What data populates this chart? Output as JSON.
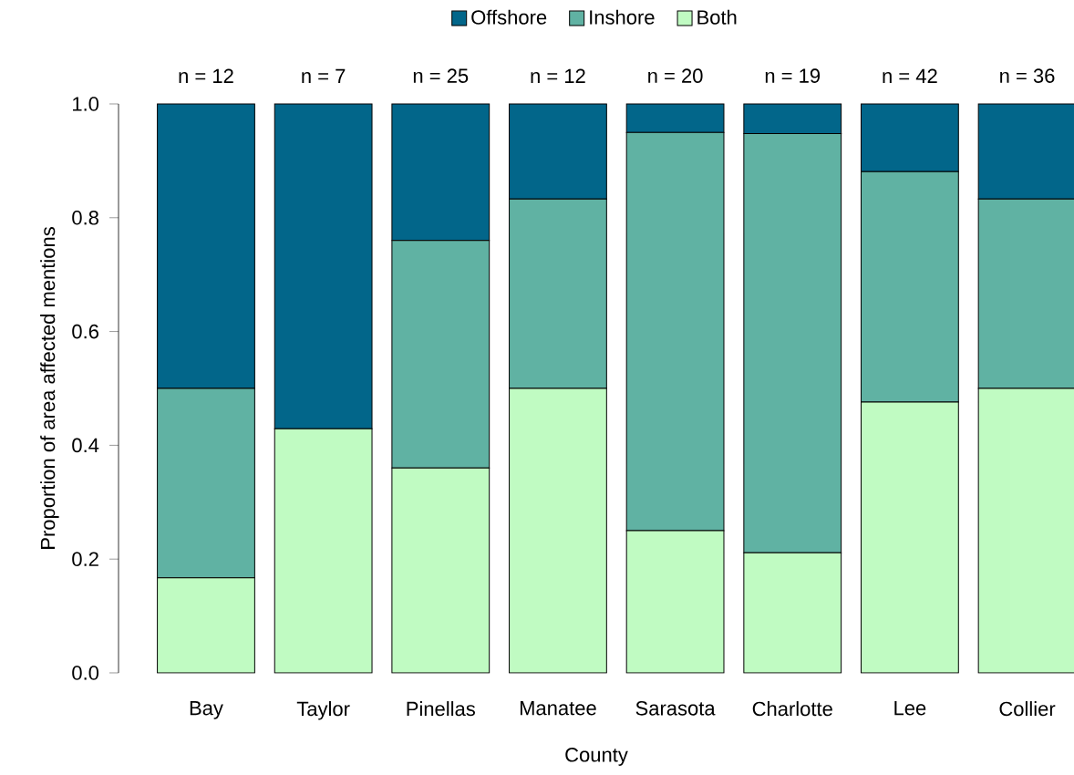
{
  "chart_data": {
    "type": "bar",
    "stacked": true,
    "xlabel": "County",
    "ylabel": "Proportion of area affected mentions",
    "categories": [
      "Bay",
      "Taylor",
      "Pinellas",
      "Manatee",
      "Sarasota",
      "Charlotte",
      "Lee",
      "Collier"
    ],
    "series": [
      {
        "name": "Both",
        "color": "#c0fbc2",
        "values": [
          0.167,
          0.429,
          0.36,
          0.5,
          0.25,
          0.211,
          0.476,
          0.5
        ]
      },
      {
        "name": "Inshore",
        "color": "#60b2a3",
        "values": [
          0.333,
          0,
          0.4,
          0.333,
          0.7,
          0.737,
          0.405,
          0.333
        ]
      },
      {
        "name": "Offshore",
        "color": "#02668a",
        "values": [
          0.5,
          0.571,
          0.24,
          0.167,
          0.05,
          0.052,
          0.119,
          0.167
        ]
      }
    ],
    "ylim": [
      0,
      1
    ],
    "yticks": [
      {
        "value": 0,
        "label": "0.0"
      },
      0.2,
      0.4,
      0.6,
      0.8,
      {
        "value": 1,
        "label": "1.0"
      }
    ],
    "legend": "top",
    "grid": false,
    "annotations": [
      "n = 12",
      "n = 7",
      "n = 25",
      "n = 12",
      "n = 20",
      "n = 19",
      "n = 42",
      "n = 36"
    ]
  }
}
